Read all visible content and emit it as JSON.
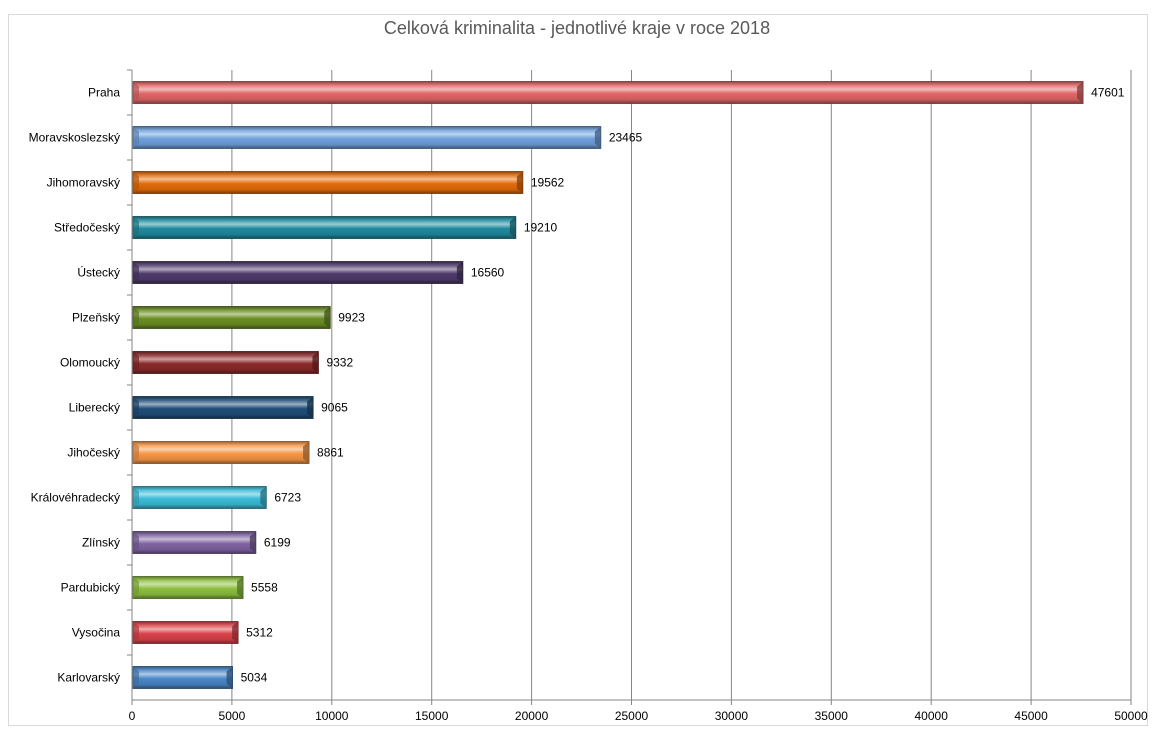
{
  "chart_data": {
    "type": "bar",
    "orientation": "horizontal",
    "title": "Celková kriminalita - jednotlivé kraje v roce 2018",
    "xlabel": "",
    "ylabel": "",
    "xlim": [
      0,
      50000
    ],
    "x_ticks": [
      0,
      5000,
      10000,
      15000,
      20000,
      25000,
      30000,
      35000,
      40000,
      45000,
      50000
    ],
    "grid": "vertical",
    "legend": "none",
    "categories": [
      "Praha",
      "Moravskoslezský",
      "Jihomoravský",
      "Středočeský",
      "Ústecký",
      "Plzeňský",
      "Olomoucký",
      "Liberecký",
      "Jihočeský",
      "Královéhradecký",
      "Zlínský",
      "Pardubický",
      "Vysočina",
      "Karlovarský"
    ],
    "values": [
      47601,
      23465,
      19562,
      19210,
      16560,
      9923,
      9332,
      9065,
      8861,
      6723,
      6199,
      5558,
      5312,
      5034
    ],
    "colors": [
      "#e06666",
      "#6fa0dc",
      "#e46c0a",
      "#1f8b9e",
      "#4f3b6b",
      "#6b8e23",
      "#8b2a2a",
      "#1f4e79",
      "#f79646",
      "#3cbcd8",
      "#8064a2",
      "#8cbf3f",
      "#d9434a",
      "#4a86c8"
    ]
  }
}
